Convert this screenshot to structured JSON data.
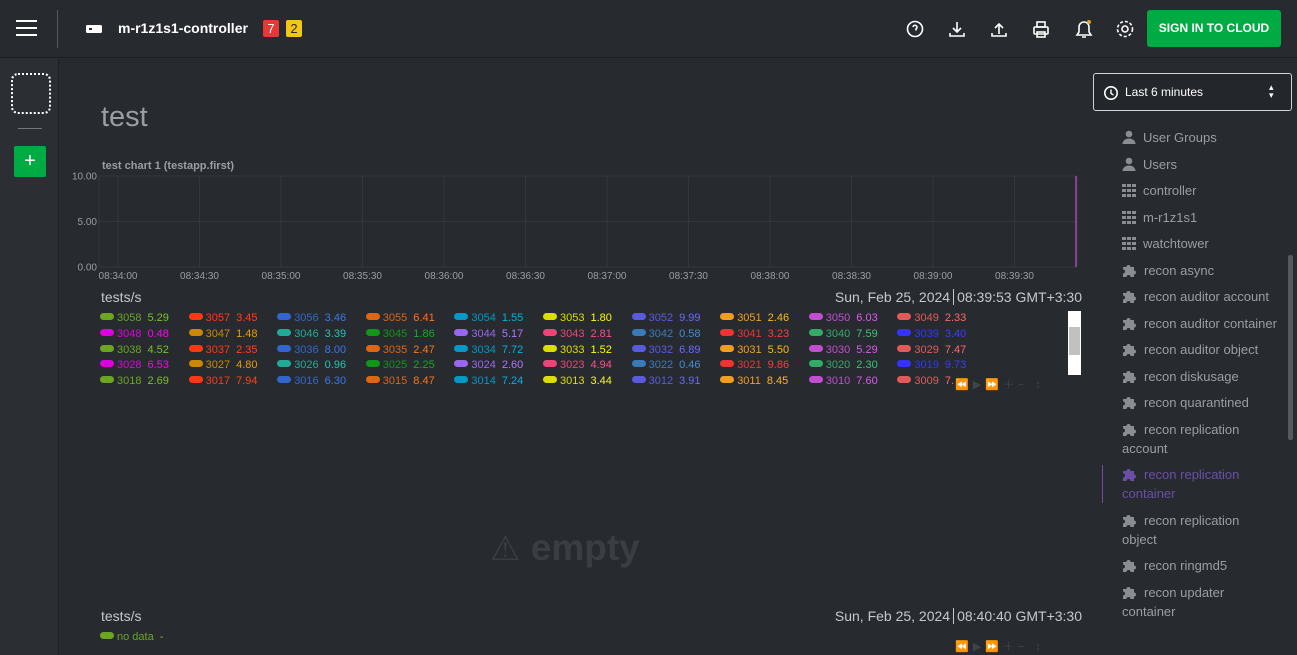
{
  "header": {
    "title": "m-r1z1s1-controller",
    "badges": [
      "7",
      "2"
    ],
    "button": "SIGN IN TO CLOUD"
  },
  "time_picker": "Last 6 minutes",
  "section_title": "test",
  "chart": {
    "title": "test chart 1 (testapp.first)",
    "ylim": [
      0,
      10
    ],
    "yticks": [
      {
        "value": 0,
        "label": "0.00"
      },
      {
        "value": 5,
        "label": "5.00"
      },
      {
        "value": 10,
        "label": "10.00"
      }
    ],
    "xticks": [
      "08:34:00",
      "08:34:30",
      "08:35:00",
      "08:35:30",
      "08:36:00",
      "08:36:30",
      "08:37:00",
      "08:37:30",
      "08:38:00",
      "08:38:30",
      "08:39:00",
      "08:39:30"
    ]
  },
  "panels": [
    {
      "units": "tests/s",
      "date": "Sun, Feb 25, 2024",
      "time": "08:39:53 GMT+3:30",
      "legend": [
        {
          "name": "3058",
          "value": "5.29",
          "color": "#6aa621"
        },
        {
          "name": "3057",
          "value": "3.45",
          "color": "#fe3912"
        },
        {
          "name": "3056",
          "value": "3.46",
          "color": "#3366cc"
        },
        {
          "name": "3055",
          "value": "6.41",
          "color": "#dd6611"
        },
        {
          "name": "3054",
          "value": "1.55",
          "color": "#0099c6"
        },
        {
          "name": "3053",
          "value": "1.80",
          "color": "#dddd00"
        },
        {
          "name": "3052",
          "value": "9.99",
          "color": "#5b5be0"
        },
        {
          "name": "3051",
          "value": "2.46",
          "color": "#f29d1e"
        },
        {
          "name": "3050",
          "value": "6.03",
          "color": "#c24dd0"
        },
        {
          "name": "3049",
          "value": "2.33",
          "color": "#e05a5a"
        },
        {
          "name": "3048",
          "value": "0.48",
          "color": "#dd00dd"
        },
        {
          "name": "3047",
          "value": "1.48",
          "color": "#cc8800"
        },
        {
          "name": "3046",
          "value": "3.39",
          "color": "#22aa99"
        },
        {
          "name": "3045",
          "value": "1.86",
          "color": "#109618"
        },
        {
          "name": "3044",
          "value": "5.17",
          "color": "#9966ee"
        },
        {
          "name": "3043",
          "value": "2.81",
          "color": "#ee4477"
        },
        {
          "name": "3042",
          "value": "0.58",
          "color": "#3b7ab8"
        },
        {
          "name": "3041",
          "value": "3.23",
          "color": "#ee3333"
        },
        {
          "name": "3040",
          "value": "7.59",
          "color": "#33aa66"
        },
        {
          "name": "3039",
          "value": "3.40",
          "color": "#3333ff"
        },
        {
          "name": "3038",
          "value": "4.52",
          "color": "#6aa621"
        },
        {
          "name": "3037",
          "value": "2.35",
          "color": "#fe3912"
        },
        {
          "name": "3036",
          "value": "8.00",
          "color": "#3366cc"
        },
        {
          "name": "3035",
          "value": "2.47",
          "color": "#dd6611"
        },
        {
          "name": "3034",
          "value": "7.72",
          "color": "#0099c6"
        },
        {
          "name": "3033",
          "value": "1.52",
          "color": "#dddd00"
        },
        {
          "name": "3032",
          "value": "6.89",
          "color": "#5b5be0"
        },
        {
          "name": "3031",
          "value": "5.50",
          "color": "#f29d1e"
        },
        {
          "name": "3030",
          "value": "5.29",
          "color": "#c24dd0"
        },
        {
          "name": "3029",
          "value": "7.47",
          "color": "#e05a5a"
        },
        {
          "name": "3028",
          "value": "6.53",
          "color": "#dd00dd"
        },
        {
          "name": "3027",
          "value": "4.80",
          "color": "#cc8800"
        },
        {
          "name": "3026",
          "value": "0.96",
          "color": "#22aa99"
        },
        {
          "name": "3025",
          "value": "2.25",
          "color": "#109618"
        },
        {
          "name": "3024",
          "value": "2.60",
          "color": "#9966ee"
        },
        {
          "name": "3023",
          "value": "4.94",
          "color": "#ee4477"
        },
        {
          "name": "3022",
          "value": "0.46",
          "color": "#3b7ab8"
        },
        {
          "name": "3021",
          "value": "9.86",
          "color": "#ee3333"
        },
        {
          "name": "3020",
          "value": "2.30",
          "color": "#33aa66"
        },
        {
          "name": "3019",
          "value": "9.73",
          "color": "#3333ff"
        },
        {
          "name": "3018",
          "value": "2.69",
          "color": "#6aa621"
        },
        {
          "name": "3017",
          "value": "7.94",
          "color": "#fe3912"
        },
        {
          "name": "3016",
          "value": "6.30",
          "color": "#3366cc"
        },
        {
          "name": "3015",
          "value": "8.47",
          "color": "#dd6611"
        },
        {
          "name": "3014",
          "value": "7.24",
          "color": "#0099c6"
        },
        {
          "name": "3013",
          "value": "3.44",
          "color": "#dddd00"
        },
        {
          "name": "3012",
          "value": "3.91",
          "color": "#5b5be0"
        },
        {
          "name": "3011",
          "value": "8.45",
          "color": "#f29d1e"
        },
        {
          "name": "3010",
          "value": "7.60",
          "color": "#c24dd0"
        },
        {
          "name": "3009",
          "value": "7.",
          "color": "#e05a5a"
        }
      ]
    },
    {
      "units": "tests/s",
      "date": "Sun, Feb 25, 2024",
      "time": "08:40:40 GMT+3:30",
      "legend": [
        {
          "name": "no data",
          "value": "-",
          "color": "#6aa621"
        }
      ]
    }
  ],
  "empty_label": "empty",
  "menu": [
    "User Groups",
    "Users",
    "controller",
    "m-r1z1s1",
    "watchtower",
    "recon async",
    "recon auditor account",
    "recon auditor container",
    "recon auditor object",
    "recon diskusage",
    "recon quarantined",
    "recon replication account",
    "recon replication container",
    "recon replication object",
    "recon ringmd5",
    "recon updater container"
  ],
  "menu_active": 12
}
